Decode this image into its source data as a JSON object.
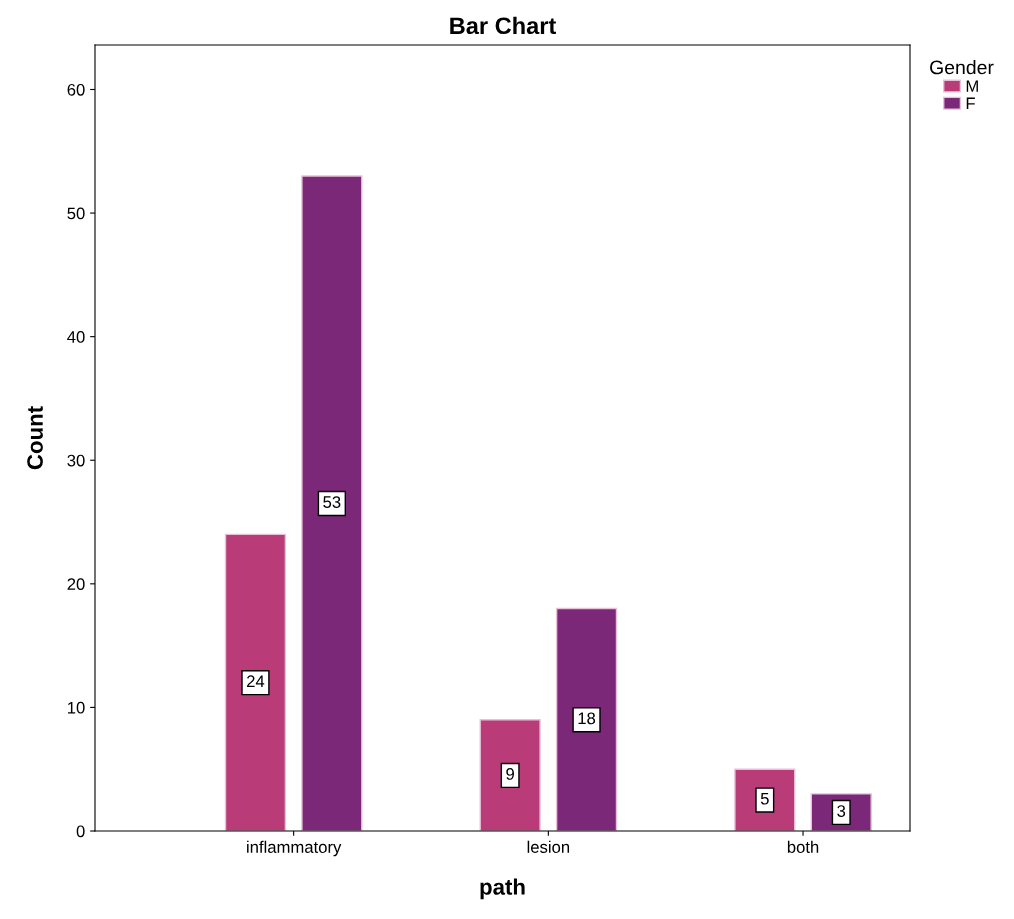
{
  "chart_data": {
    "type": "bar",
    "title": "Bar Chart",
    "xlabel": "path",
    "ylabel": "Count",
    "legend_title": "Gender",
    "categories": [
      "inflammatory",
      "lesion",
      "both"
    ],
    "series": [
      {
        "name": "M",
        "color": "#b93c78",
        "values": [
          24,
          9,
          5
        ]
      },
      {
        "name": "F",
        "color": "#7c2878",
        "values": [
          53,
          18,
          3
        ]
      }
    ],
    "ylim": [
      0,
      63.6
    ],
    "yticks": [
      0,
      10,
      20,
      30,
      40,
      50,
      60
    ],
    "data_labels": true,
    "legend": "right",
    "grid": false
  }
}
